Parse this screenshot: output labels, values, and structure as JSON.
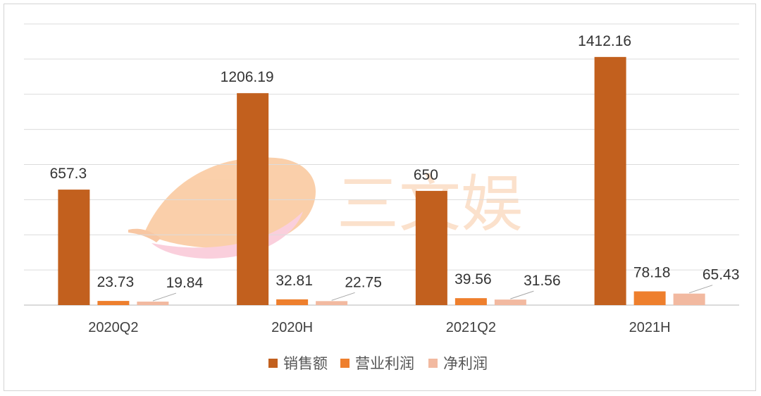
{
  "chart_data": {
    "type": "bar",
    "categories": [
      "2020Q2",
      "2020H",
      "2021Q2",
      "2021H"
    ],
    "series": [
      {
        "name": "销售额",
        "values": [
          657.3,
          1206.19,
          650,
          1412.16
        ],
        "color": "#c2601e"
      },
      {
        "name": "营业利润",
        "values": [
          23.73,
          32.81,
          39.56,
          78.18
        ],
        "color": "#ee7f2d"
      },
      {
        "name": "净利润",
        "values": [
          19.84,
          22.75,
          31.56,
          65.43
        ],
        "color": "#f2b9a0"
      }
    ],
    "data_labels": [
      [
        "657.3",
        "1206.19",
        "650",
        "1412.16"
      ],
      [
        "23.73",
        "32.81",
        "39.56",
        "78.18"
      ],
      [
        "19.84",
        "22.75",
        "31.56",
        "65.43"
      ]
    ],
    "ylim": [
      0,
      1600
    ],
    "grid": true,
    "legend_position": "bottom"
  },
  "watermark": {
    "text": "三文娱"
  }
}
